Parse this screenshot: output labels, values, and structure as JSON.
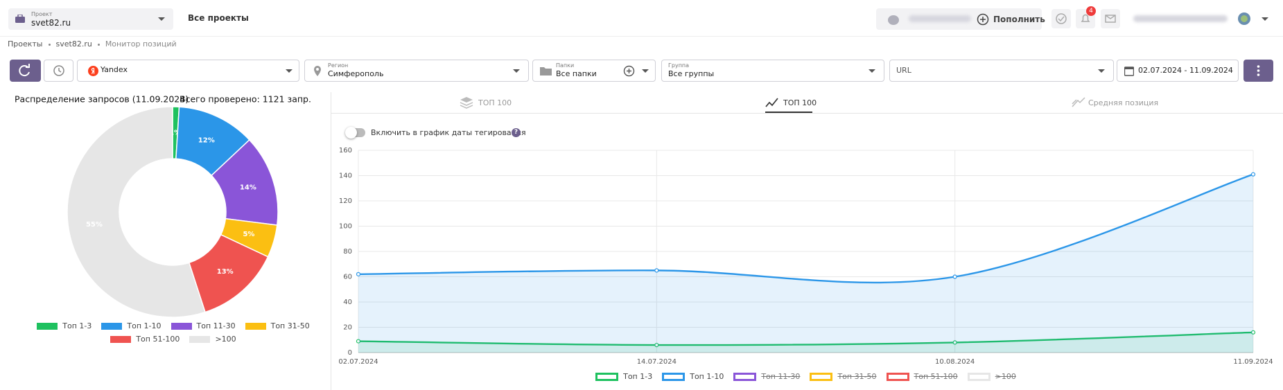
{
  "header": {
    "project_label": "Проект",
    "project": "svet82.ru",
    "all_projects": "Все проекты",
    "top_up": "Пополнить",
    "notifications": "4"
  },
  "breadcrumbs": [
    "Проекты",
    "svet82.ru",
    "Монитор позиций"
  ],
  "filters": {
    "engine": "Yandex",
    "region_label": "Регион",
    "region": "Симферополь",
    "folders_label": "Папки",
    "folders": "Все папки",
    "group_label": "Группа",
    "group": "Все группы",
    "url": "URL",
    "dates": "02.07.2024 - 11.09.2024"
  },
  "tabs": [
    "ТОП 100",
    "ТОП 100",
    "Средняя позиция"
  ],
  "toggle_label": "Включить в график даты тегирования",
  "help": "?",
  "chart_data": [
    {
      "type": "pie",
      "title": "Распределение запросов (11.09.2024)",
      "subtitle": "Всего проверено: 1121 запр.",
      "categories": [
        "Топ 1-3",
        "Топ 1-10",
        "Топ 11-30",
        "Топ 31-50",
        "Топ 51-100",
        ">100"
      ],
      "values": [
        1,
        12,
        14,
        5,
        13,
        55
      ],
      "value_labels": [
        "1%",
        "12%",
        "14%",
        "5%",
        "13%",
        "55%"
      ],
      "colors": [
        "#1ec15f",
        "#2b96e8",
        "#8a55d8",
        "#fbbf12",
        "#ef5350",
        "#e6e6e6"
      ]
    },
    {
      "type": "line",
      "categories": [
        "02.07.2024",
        "14.07.2024",
        "10.08.2024",
        "11.09.2024"
      ],
      "series": [
        {
          "name": "Топ 1-3",
          "color": "#1ec15f",
          "values": [
            9,
            6,
            8,
            16
          ]
        },
        {
          "name": "Топ 1-10",
          "color": "#2b96e8",
          "values": [
            62,
            65,
            60,
            141
          ]
        },
        {
          "name": "Топ 11-30",
          "color": "#8a55d8",
          "values": [
            null,
            null,
            null,
            null
          ],
          "hidden": true
        },
        {
          "name": "Топ 31-50",
          "color": "#fbbf12",
          "values": [
            null,
            null,
            null,
            null
          ],
          "hidden": true
        },
        {
          "name": "Топ 51-100",
          "color": "#ef5350",
          "values": [
            null,
            null,
            null,
            null
          ],
          "hidden": true
        },
        {
          "name": ">100",
          "color": "#e6e6e6",
          "values": [
            null,
            null,
            null,
            null
          ],
          "hidden": true
        }
      ],
      "ylim": [
        0,
        160
      ],
      "yticks": [
        0,
        20,
        40,
        60,
        80,
        100,
        120,
        140,
        160
      ],
      "grid": true
    }
  ]
}
